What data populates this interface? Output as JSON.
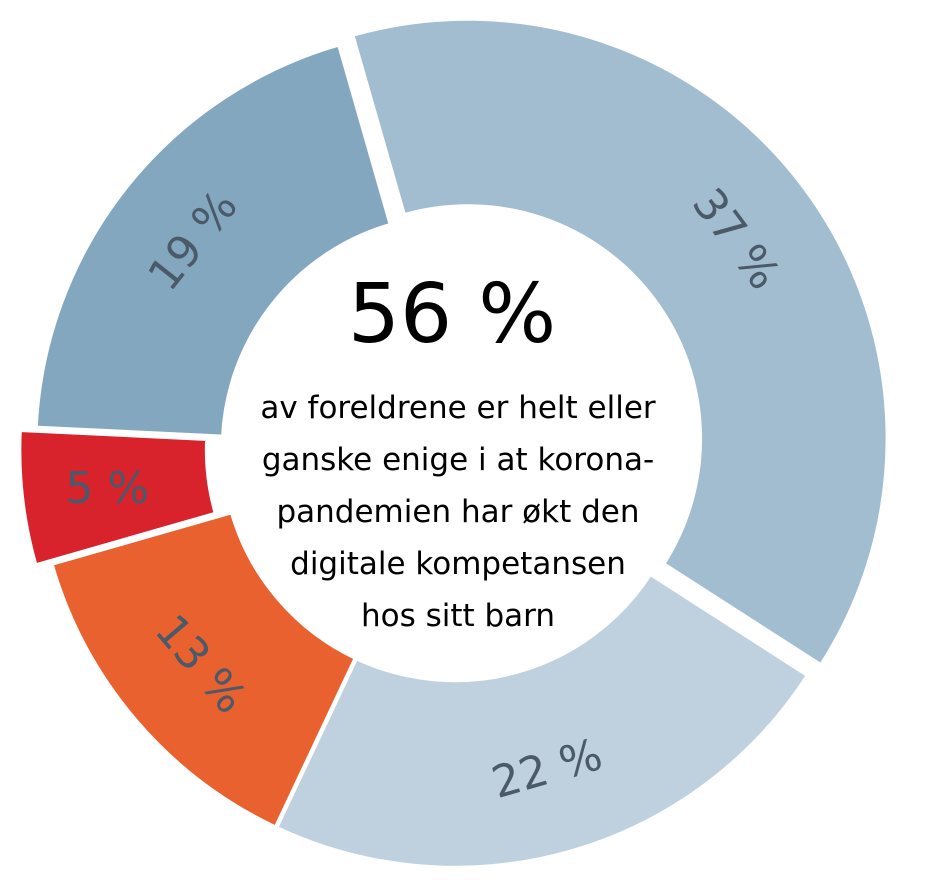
{
  "chart_data": {
    "type": "pie",
    "donut": true,
    "exploded_slices": [
      "37 %",
      "5 %"
    ],
    "slices": [
      {
        "label": "37 %",
        "value": 37,
        "color": "#a3bdd0"
      },
      {
        "label": "22 %",
        "value": 22,
        "color": "#bfd0de"
      },
      {
        "label": "13 %",
        "value": 13,
        "color": "#ea6130"
      },
      {
        "label": "5 %",
        "value": 5,
        "color": "#d8232c"
      },
      {
        "label": "19 %",
        "value": 19,
        "color": "#84a7c0"
      }
    ],
    "center": {
      "value": "56 %",
      "text_lines": [
        "av foreldrene er helt eller",
        "ganske enige i at korona-",
        "pandemien har økt den",
        "digitale kompetansen",
        "hos sitt barn"
      ]
    }
  }
}
